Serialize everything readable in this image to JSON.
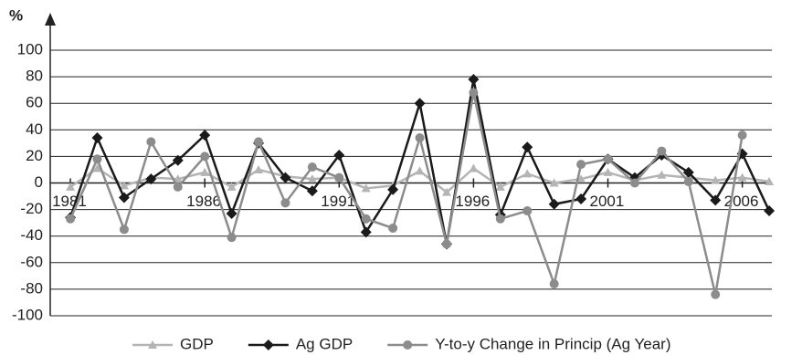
{
  "chart_data": {
    "type": "line",
    "y_label": "%",
    "x": [
      1981,
      1982,
      1983,
      1984,
      1985,
      1986,
      1987,
      1988,
      1989,
      1990,
      1991,
      1992,
      1993,
      1994,
      1995,
      1996,
      1997,
      1998,
      1999,
      2000,
      2001,
      2002,
      2003,
      2004,
      2005,
      2006,
      2007
    ],
    "series": [
      {
        "name": "GDP",
        "color": "#b4b4b4",
        "marker": "triangle",
        "values": [
          -3,
          11,
          -2,
          4,
          3,
          8,
          -3,
          10,
          5,
          3,
          4,
          -4,
          -2,
          9,
          -7,
          11,
          -3,
          7,
          0,
          3,
          8,
          2,
          6,
          4,
          2,
          4,
          1
        ]
      },
      {
        "name": "Ag GDP",
        "color": "#1a1a1a",
        "marker": "diamond",
        "values": [
          -26,
          34,
          -11,
          3,
          17,
          36,
          -23,
          30,
          4,
          -6,
          21,
          -37,
          -5,
          60,
          -46,
          78,
          -24,
          27,
          -16,
          -12,
          18,
          4,
          21,
          8,
          -13,
          22,
          -21
        ]
      },
      {
        "name": "Y-to-y Change in Princip (Ag Year)",
        "color": "#8c8c8c",
        "marker": "circle",
        "values": [
          -27,
          18,
          -35,
          31,
          -3,
          20,
          -41,
          31,
          -15,
          12,
          4,
          -27,
          -34,
          34,
          -46,
          68,
          -27,
          -21,
          -76,
          14,
          18,
          0,
          24,
          1,
          -84,
          36,
          null
        ]
      }
    ],
    "xlim": [
      1980.25,
      2007.1
    ],
    "xticks": [
      1981,
      1986,
      1991,
      1996,
      2001,
      2006
    ],
    "ylim": [
      -100,
      100
    ],
    "yticks": [
      -100,
      -80,
      -60,
      -40,
      -20,
      0,
      20,
      40,
      60,
      80,
      100
    ],
    "grid": true,
    "legend": "bottom"
  }
}
